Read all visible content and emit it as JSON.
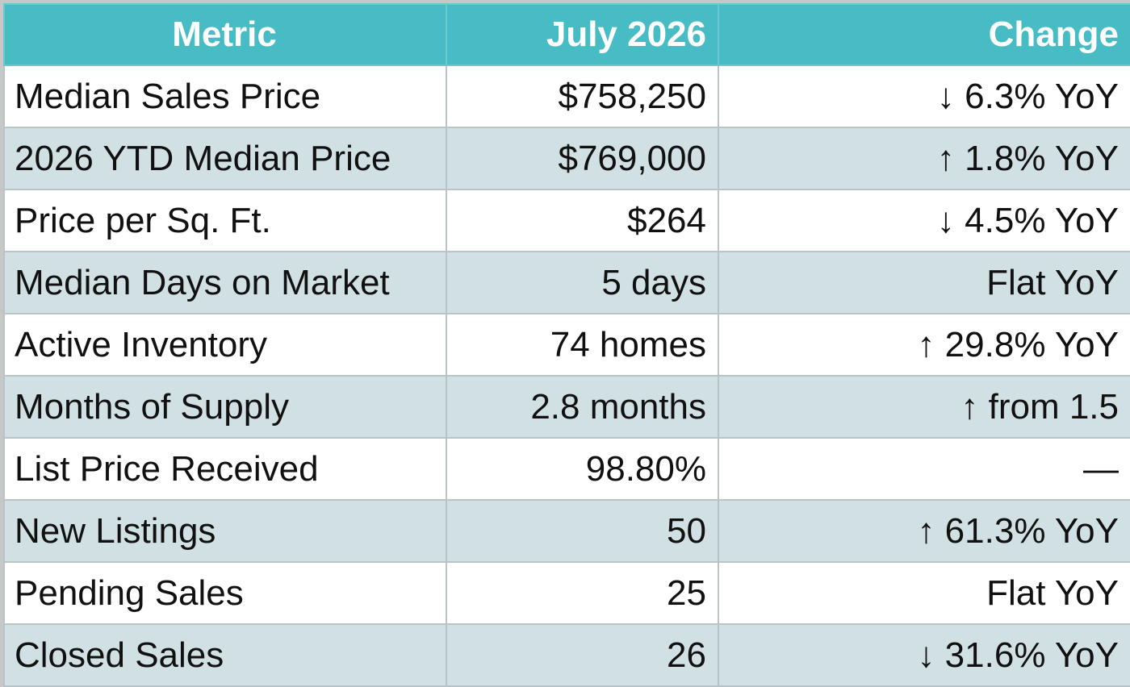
{
  "header": {
    "metric": "Metric",
    "month": "July 2026",
    "change": "Change"
  },
  "rows": [
    {
      "metric": "Median Sales Price",
      "value": "$758,250",
      "change": "↓ 6.3% YoY"
    },
    {
      "metric": "2026 YTD Median Price",
      "value": "$769,000",
      "change": "↑ 1.8% YoY"
    },
    {
      "metric": "Price per Sq. Ft.",
      "value": "$264",
      "change": "↓ 4.5% YoY"
    },
    {
      "metric": "Median Days on Market",
      "value": "5 days",
      "change": "Flat YoY"
    },
    {
      "metric": "Active Inventory",
      "value": "74 homes",
      "change": "↑ 29.8% YoY"
    },
    {
      "metric": "Months of Supply",
      "value": "2.8 months",
      "change": "↑ from 1.5"
    },
    {
      "metric": "List Price Received",
      "value": "98.80%",
      "change": "—"
    },
    {
      "metric": "New Listings",
      "value": "50",
      "change": "↑ 61.3% YoY"
    },
    {
      "metric": "Pending Sales",
      "value": "25",
      "change": "Flat YoY"
    },
    {
      "metric": "Closed Sales",
      "value": "26",
      "change": "↓ 31.6% YoY"
    }
  ],
  "colors": {
    "header_bg": "#47bcc5",
    "header_text": "#ffffff",
    "row_alt_bg": "#d1e0e3",
    "row_bg": "#ffffff"
  }
}
